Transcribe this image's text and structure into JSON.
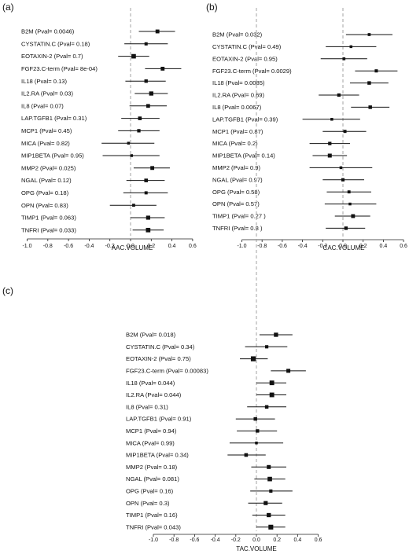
{
  "chart_data": [
    {
      "type": "forest",
      "panel_label": "(a)",
      "xlabel": "AAC.VOLUME",
      "xlim": [
        -1.0,
        0.6
      ],
      "x_ticks": [
        "-1.0",
        "-0.8",
        "-0.6",
        "-0.4",
        "-0.2",
        "0.0",
        "0.2",
        "0.4",
        "0.6"
      ],
      "reference_line": 0,
      "rows": [
        {
          "label": "B2M  (Pval= 0.0046)",
          "estimate": 0.26,
          "lower": 0.08,
          "upper": 0.43
        },
        {
          "label": "CYSTATIN.C  (Pval= 0.18)",
          "estimate": 0.15,
          "lower": -0.06,
          "upper": 0.36
        },
        {
          "label": "EOTAXIN-2  (Pval= 0.7)",
          "estimate": 0.03,
          "lower": -0.12,
          "upper": 0.18
        },
        {
          "label": "FGF23.C-term  (Pval= 8e-04)",
          "estimate": 0.31,
          "lower": 0.14,
          "upper": 0.49
        },
        {
          "label": "IL18  (Pval= 0.13)",
          "estimate": 0.15,
          "lower": -0.05,
          "upper": 0.34
        },
        {
          "label": "IL2.RA  (Pval= 0.03)",
          "estimate": 0.2,
          "lower": 0.04,
          "upper": 0.36
        },
        {
          "label": "IL8  (Pval= 0.07)",
          "estimate": 0.17,
          "lower": -0.01,
          "upper": 0.35
        },
        {
          "label": "LAP.TGFB1  (Pval= 0.31)",
          "estimate": 0.09,
          "lower": -0.09,
          "upper": 0.28
        },
        {
          "label": "MCP1  (Pval= 0.45)",
          "estimate": 0.08,
          "lower": -0.12,
          "upper": 0.28
        },
        {
          "label": "MICA  (Pval= 0.82)",
          "estimate": -0.02,
          "lower": -0.28,
          "upper": 0.23
        },
        {
          "label": "MIP1BETA  (Pval= 0.95)",
          "estimate": 0.01,
          "lower": -0.27,
          "upper": 0.28
        },
        {
          "label": "MMP2  (Pval= 0.025)",
          "estimate": 0.21,
          "lower": 0.03,
          "upper": 0.38
        },
        {
          "label": "NGAL  (Pval= 0.12)",
          "estimate": 0.15,
          "lower": -0.04,
          "upper": 0.33
        },
        {
          "label": "OPG  (Pval= 0.18)",
          "estimate": 0.15,
          "lower": -0.07,
          "upper": 0.36
        },
        {
          "label": "OPN  (Pval= 0.83)",
          "estimate": 0.03,
          "lower": -0.2,
          "upper": 0.25
        },
        {
          "label": "TIMP1  (Pval= 0.063)",
          "estimate": 0.17,
          "lower": 0.0,
          "upper": 0.33
        },
        {
          "label": "TNFRI  (Pval= 0.033)",
          "estimate": 0.17,
          "lower": 0.02,
          "upper": 0.32
        }
      ]
    },
    {
      "type": "forest",
      "panel_label": "(b)",
      "xlabel": "CAC.VOLUME",
      "xlim": [
        -1.0,
        0.6
      ],
      "x_ticks": [
        "-1.0",
        "-0.8",
        "-0.6",
        "-0.4",
        "-0.2",
        "0.0",
        "0.2",
        "0.4",
        "0.6"
      ],
      "reference_line": 0,
      "rows": [
        {
          "label": "B2M  (Pval= 0.032)",
          "estimate": 0.26,
          "lower": 0.03,
          "upper": 0.49
        },
        {
          "label": "CYSTATIN.C  (Pval= 0.49)",
          "estimate": 0.08,
          "lower": -0.17,
          "upper": 0.33
        },
        {
          "label": "EOTAXIN-2  (Pval= 0.95)",
          "estimate": 0.01,
          "lower": -0.22,
          "upper": 0.24
        },
        {
          "label": "FGF23.C-term  (Pval= 0.0029)",
          "estimate": 0.33,
          "lower": 0.12,
          "upper": 0.54
        },
        {
          "label": "IL18  (Pval= 0.0085)",
          "estimate": 0.26,
          "lower": 0.07,
          "upper": 0.45
        },
        {
          "label": "IL2.RA  (Pval= 0.69)",
          "estimate": -0.04,
          "lower": -0.24,
          "upper": 0.16
        },
        {
          "label": "IL8  (Pval= 0.0067)",
          "estimate": 0.27,
          "lower": 0.08,
          "upper": 0.46
        },
        {
          "label": "LAP.TGFB1  (Pval= 0.39)",
          "estimate": -0.11,
          "lower": -0.4,
          "upper": 0.17
        },
        {
          "label": "MCP1  (Pval= 0.87)",
          "estimate": 0.02,
          "lower": -0.2,
          "upper": 0.23
        },
        {
          "label": "MICA  (Pval= 0.2)",
          "estimate": -0.13,
          "lower": -0.33,
          "upper": 0.07
        },
        {
          "label": "MIP1BETA  (Pval= 0.14)",
          "estimate": -0.13,
          "lower": -0.3,
          "upper": 0.04
        },
        {
          "label": "MMP2  (Pval= 0.9)",
          "estimate": -0.02,
          "lower": -0.33,
          "upper": 0.29
        },
        {
          "label": "NGAL  (Pval= 0.97)",
          "estimate": 0.0,
          "lower": -0.2,
          "upper": 0.21
        },
        {
          "label": "OPG  (Pval= 0.58)",
          "estimate": 0.06,
          "lower": -0.16,
          "upper": 0.28
        },
        {
          "label": "OPN  (Pval= 0.57)",
          "estimate": 0.07,
          "lower": -0.18,
          "upper": 0.33
        },
        {
          "label": "TIMP1  (Pval= 0.27 )",
          "estimate": 0.1,
          "lower": -0.08,
          "upper": 0.27
        },
        {
          "label": "TNFRI  (Pval= 0.8 )",
          "estimate": 0.03,
          "lower": -0.17,
          "upper": 0.22
        }
      ]
    },
    {
      "type": "forest",
      "panel_label": "(c)",
      "xlabel": "TAC.VOLUME",
      "xlim": [
        -1.0,
        0.6
      ],
      "x_ticks": [
        "-1.0",
        "-0.8",
        "-0.6",
        "-0.4",
        "-0.2",
        "0.0",
        "0.2",
        "0.4",
        "0.6"
      ],
      "reference_line": 0,
      "rows": [
        {
          "label": "B2M  (Pval= 0.018)",
          "estimate": 0.19,
          "lower": 0.03,
          "upper": 0.35
        },
        {
          "label": "CYSTATIN.C  (Pval= 0.34)",
          "estimate": 0.1,
          "lower": -0.11,
          "upper": 0.3
        },
        {
          "label": "EOTAXIN-2  (Pval= 0.75)",
          "estimate": -0.03,
          "lower": -0.16,
          "upper": 0.11
        },
        {
          "label": "FGF23.C-term  (Pval= 0.00083)",
          "estimate": 0.31,
          "lower": 0.14,
          "upper": 0.48
        },
        {
          "label": "IL18  (Pval= 0.044)",
          "estimate": 0.15,
          "lower": 0.0,
          "upper": 0.29
        },
        {
          "label": "IL2.RA  (Pval= 0.044)",
          "estimate": 0.15,
          "lower": 0.0,
          "upper": 0.29
        },
        {
          "label": "IL8  (Pval= 0.31)",
          "estimate": 0.1,
          "lower": -0.09,
          "upper": 0.29
        },
        {
          "label": "LAP.TGFB1  (Pval= 0.91)",
          "estimate": -0.01,
          "lower": -0.2,
          "upper": 0.18
        },
        {
          "label": "MCP1  (Pval= 0.94)",
          "estimate": 0.01,
          "lower": -0.19,
          "upper": 0.2
        },
        {
          "label": "MICA  (Pval= 0.99)",
          "estimate": 0.0,
          "lower": -0.26,
          "upper": 0.26
        },
        {
          "label": "MIP1BETA  (Pval= 0.34)",
          "estimate": -0.1,
          "lower": -0.28,
          "upper": 0.09
        },
        {
          "label": "MMP2  (Pval= 0.18)",
          "estimate": 0.12,
          "lower": -0.05,
          "upper": 0.29
        },
        {
          "label": "NGAL  (Pval= 0.081)",
          "estimate": 0.13,
          "lower": -0.02,
          "upper": 0.28
        },
        {
          "label": "OPG  (Pval= 0.16)",
          "estimate": 0.14,
          "lower": -0.06,
          "upper": 0.35
        },
        {
          "label": "OPN  (Pval= 0.3)",
          "estimate": 0.09,
          "lower": -0.08,
          "upper": 0.25
        },
        {
          "label": "TIMP1  (Pval= 0.16)",
          "estimate": 0.12,
          "lower": -0.04,
          "upper": 0.28
        },
        {
          "label": "TNFRI  (Pval= 0.043)",
          "estimate": 0.14,
          "lower": 0.0,
          "upper": 0.28
        }
      ]
    }
  ]
}
